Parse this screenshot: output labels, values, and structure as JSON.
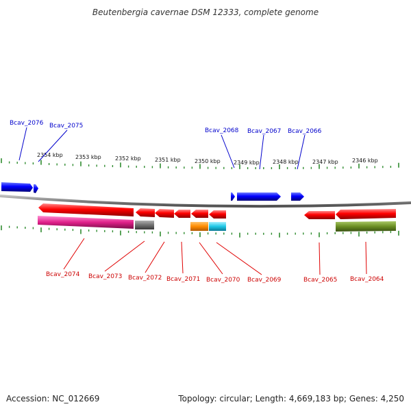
{
  "title": "Beutenbergia cavernae DSM 12333, complete genome",
  "footer": {
    "accession": "Accession: NC_012669",
    "summary": "Topology: circular; Length: 4,669,183 bp; Genes: 4,250"
  },
  "colors": {
    "forward_strand": "#0000ff",
    "reverse_strand": "#ff0000",
    "backbone": "#808080",
    "ticks": "#2e8b2e",
    "magenta_feature": "#e0218a",
    "gray_feature": "#707070",
    "orange_feature": "#ff8c00",
    "cyan_feature": "#1ec8e6",
    "olive_feature": "#6b8e23"
  },
  "scale": {
    "tick_labels": [
      "2354 kbp",
      "2353 kbp",
      "2352 kbp",
      "2351 kbp",
      "2350 kbp",
      "2349 kbp",
      "2348 kbp",
      "2347 kbp",
      "2346 kbp"
    ]
  },
  "genes": {
    "forward": [
      "Bcav_2076",
      "Bcav_2075",
      "Bcav_2068",
      "Bcav_2067",
      "Bcav_2066"
    ],
    "reverse": [
      "Bcav_2074",
      "Bcav_2073",
      "Bcav_2072",
      "Bcav_2071",
      "Bcav_2070",
      "Bcav_2069",
      "Bcav_2065",
      "Bcav_2064"
    ]
  }
}
